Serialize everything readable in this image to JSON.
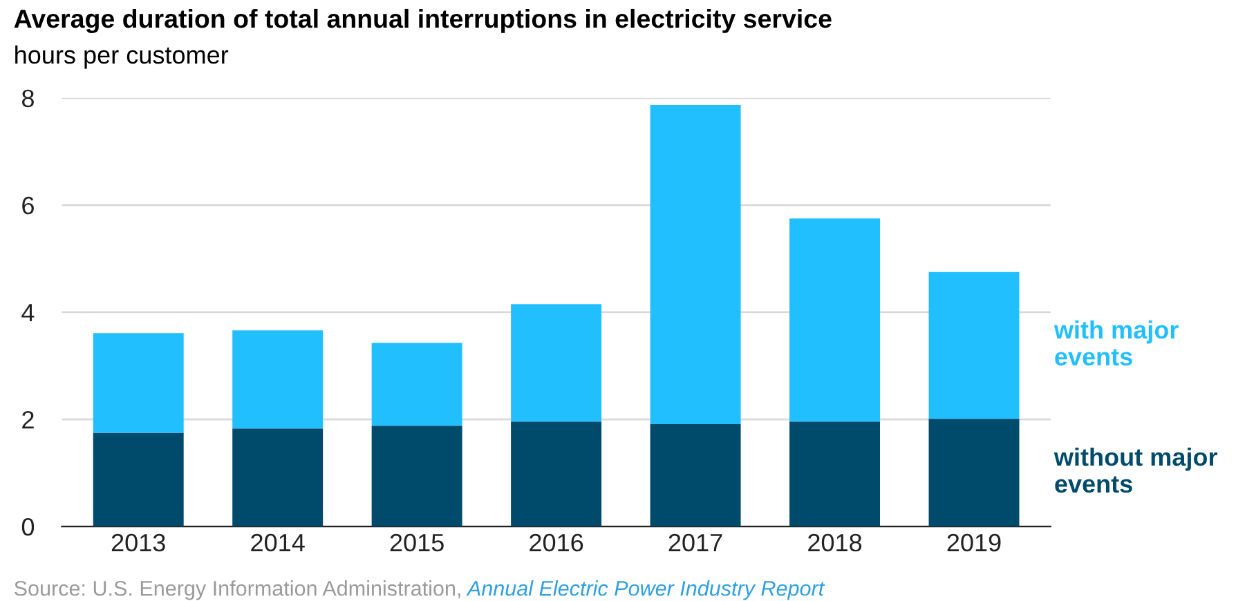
{
  "chart_data": {
    "type": "bar",
    "title": "Average duration of total annual interruptions in electricity service",
    "subtitle": "hours per customer",
    "categories": [
      "2013",
      "2014",
      "2015",
      "2016",
      "2017",
      "2018",
      "2019"
    ],
    "series": [
      {
        "name": "without major events",
        "color": "#004b6b",
        "values": [
          1.75,
          1.83,
          1.88,
          1.96,
          1.91,
          1.96,
          2.01
        ]
      },
      {
        "name": "with major events",
        "color": "#22bfff",
        "values": [
          1.86,
          1.83,
          1.55,
          2.19,
          5.96,
          3.79,
          2.74
        ]
      }
    ],
    "stacked": true,
    "ylim": [
      0,
      8
    ],
    "yticks": [
      0,
      2,
      4,
      6,
      8
    ],
    "grid": "y",
    "legend": false,
    "annotations": [
      "Source: U.S. Energy Information Administration,",
      "Annual Electric Power Industry Report"
    ]
  }
}
